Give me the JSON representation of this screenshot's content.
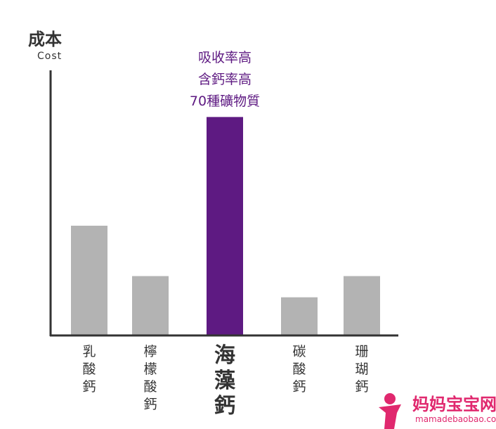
{
  "chart_data": {
    "type": "bar",
    "ylabel": "成本",
    "ylabel_sub": "Cost",
    "categories": [
      "乳酸鈣",
      "檸檬酸鈣",
      "海藻鈣",
      "碳酸鈣",
      "珊瑚鈣"
    ],
    "values": [
      41,
      22,
      82,
      14,
      22
    ],
    "ylim": [
      0,
      100
    ],
    "grid": false,
    "colors": [
      "#b3b3b3",
      "#b3b3b3",
      "#5e1a82",
      "#b3b3b3",
      "#b3b3b3"
    ],
    "highlight_index": 2,
    "annotation": [
      "吸收率高",
      "含鈣率高",
      "70種礦物質"
    ]
  },
  "watermark": {
    "text": "妈妈宝宝网",
    "url_text": "mamadebaobao.com",
    "color": "#e0286e"
  }
}
